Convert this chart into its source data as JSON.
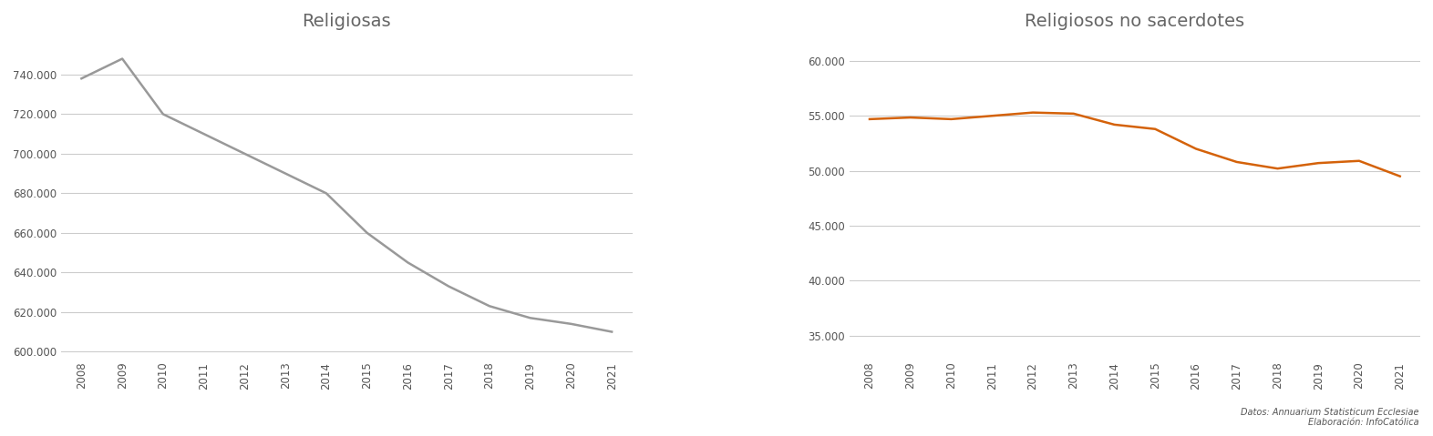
{
  "years": [
    2008,
    2009,
    2010,
    2011,
    2012,
    2013,
    2014,
    2015,
    2016,
    2017,
    2018,
    2019,
    2020,
    2021
  ],
  "religiosas": [
    738000,
    748000,
    720000,
    710000,
    700000,
    690000,
    680000,
    660000,
    645000,
    633000,
    623000,
    617000,
    614000,
    610000
  ],
  "religiosos": [
    54700,
    54850,
    54700,
    55000,
    55300,
    55200,
    54200,
    53800,
    52000,
    50800,
    50200,
    50700,
    50900,
    49500
  ],
  "title1": "Religiosas",
  "title2": "Religiosos no sacerdotes",
  "line_color1": "#999999",
  "line_color2": "#d4620a",
  "bg_color": "#ffffff",
  "grid_color": "#cccccc",
  "text_color": "#555555",
  "title_color": "#666666",
  "ylim1": [
    597000,
    758000
  ],
  "ylim2": [
    33000,
    62000
  ],
  "yticks1": [
    600000,
    620000,
    640000,
    660000,
    680000,
    700000,
    720000,
    740000
  ],
  "yticks2": [
    35000,
    40000,
    45000,
    50000,
    55000,
    60000
  ],
  "footnote": "Datos: Annuarium Statisticum Ecclesiae\nElaboración: InfoCatólica"
}
